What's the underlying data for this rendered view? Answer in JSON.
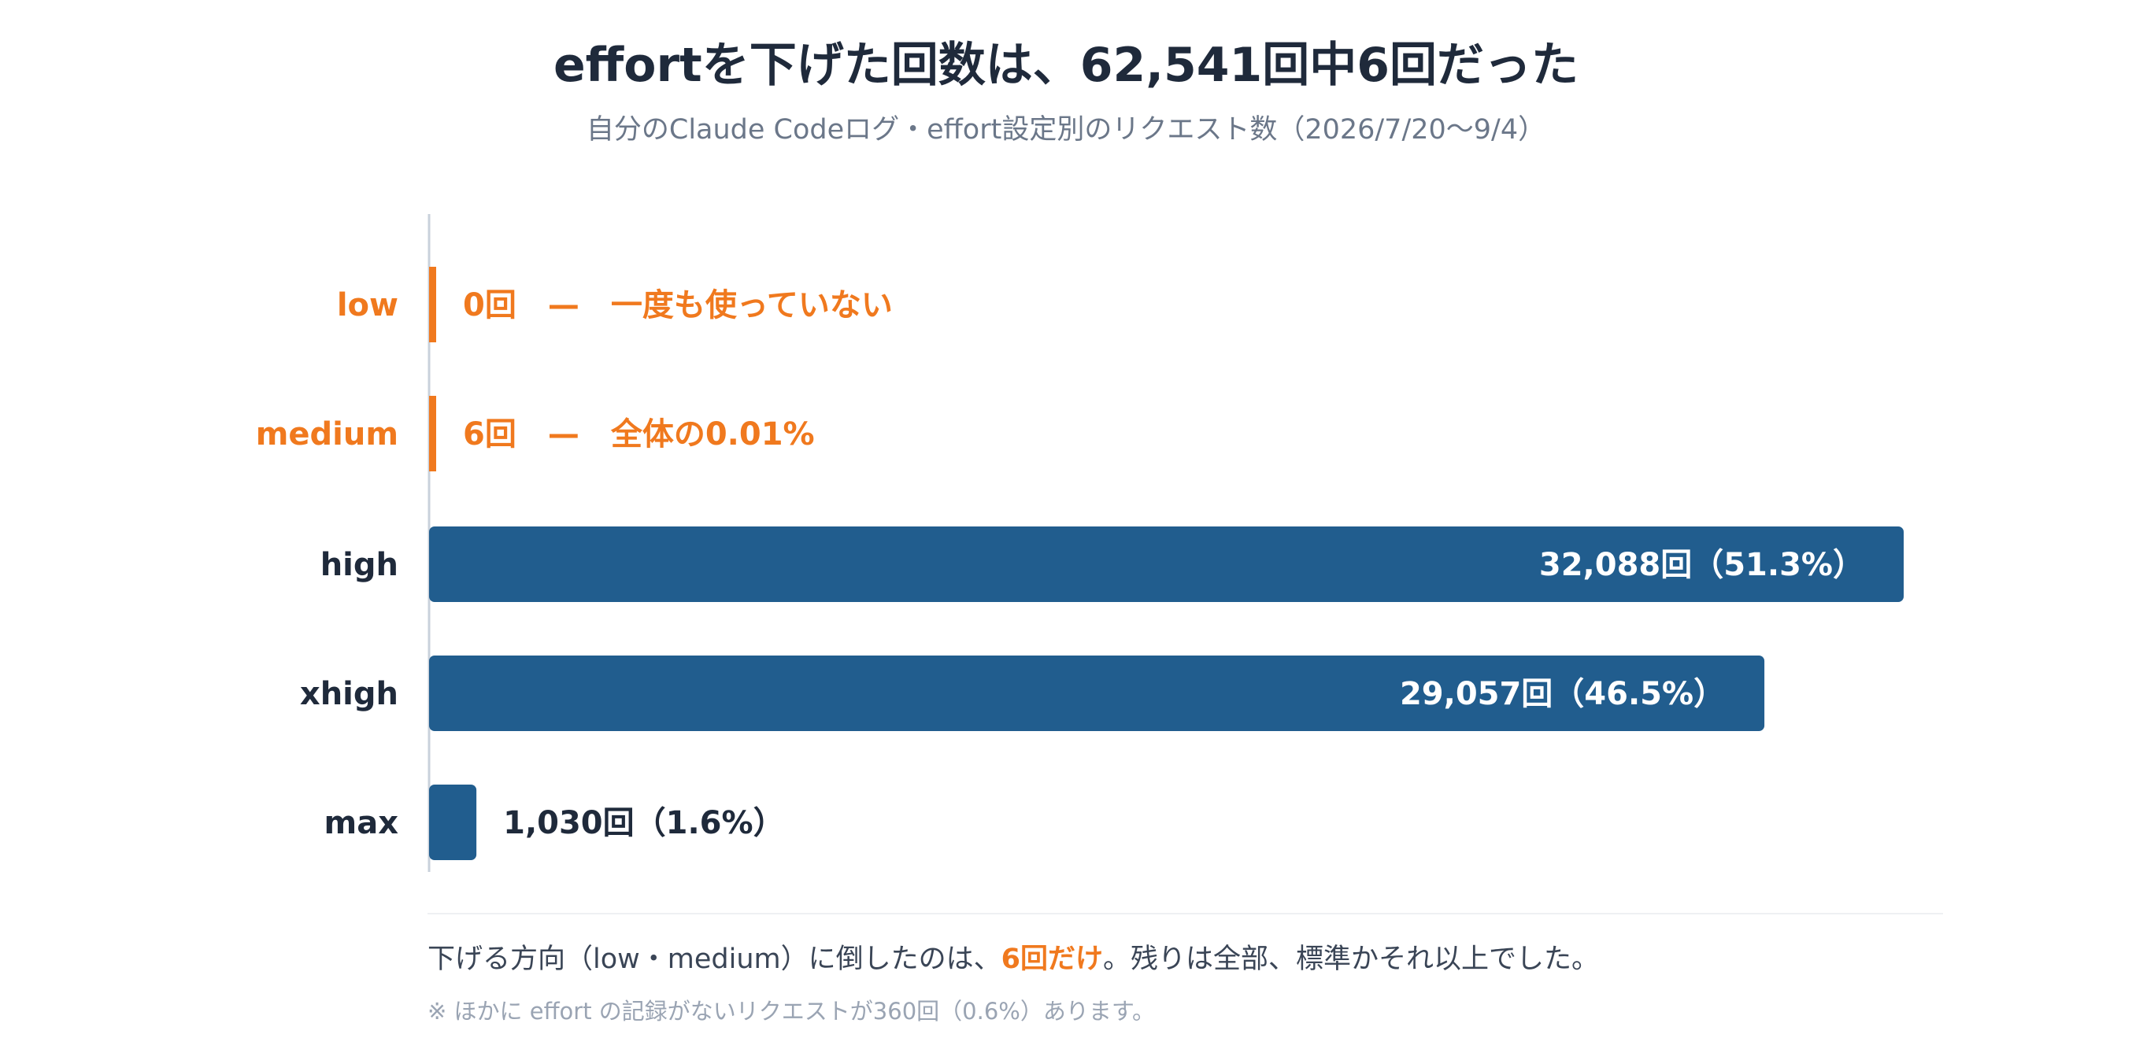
{
  "colors": {
    "highlight": "#f0791e",
    "bar": "#215d8e",
    "text_dark": "#1f2a3b",
    "text_muted": "#6b7789",
    "axis": "#c9d1db"
  },
  "chart_data": {
    "type": "bar",
    "orientation": "horizontal",
    "title": "effortを下げた回数は、62,541回中6回だった",
    "subtitle": "自分のClaude Codeログ・effort設定別のリクエスト数（2026/7/20〜9/4）",
    "xlim": [
      0,
      32088
    ],
    "grid": false,
    "categories": [
      "low",
      "medium",
      "high",
      "xhigh",
      "max"
    ],
    "values": [
      0,
      6,
      32088,
      29057,
      1030
    ],
    "highlighted": [
      true,
      true,
      false,
      false,
      false
    ],
    "value_labels": [
      "0回　—　一度も使っていない",
      "6回　—　全体の0.01%",
      "32,088回（51.3%）",
      "29,057回（46.5%）",
      "1,030回（1.6%）"
    ]
  },
  "footer": {
    "note_before": "下げる方向（low・medium）に倒したのは、",
    "note_highlight": "6回だけ",
    "note_after": "。残りは全部、標準かそれ以上でした。",
    "footnote": "※ ほかに effort の記録がないリクエストが360回（0.6%）あります。"
  }
}
